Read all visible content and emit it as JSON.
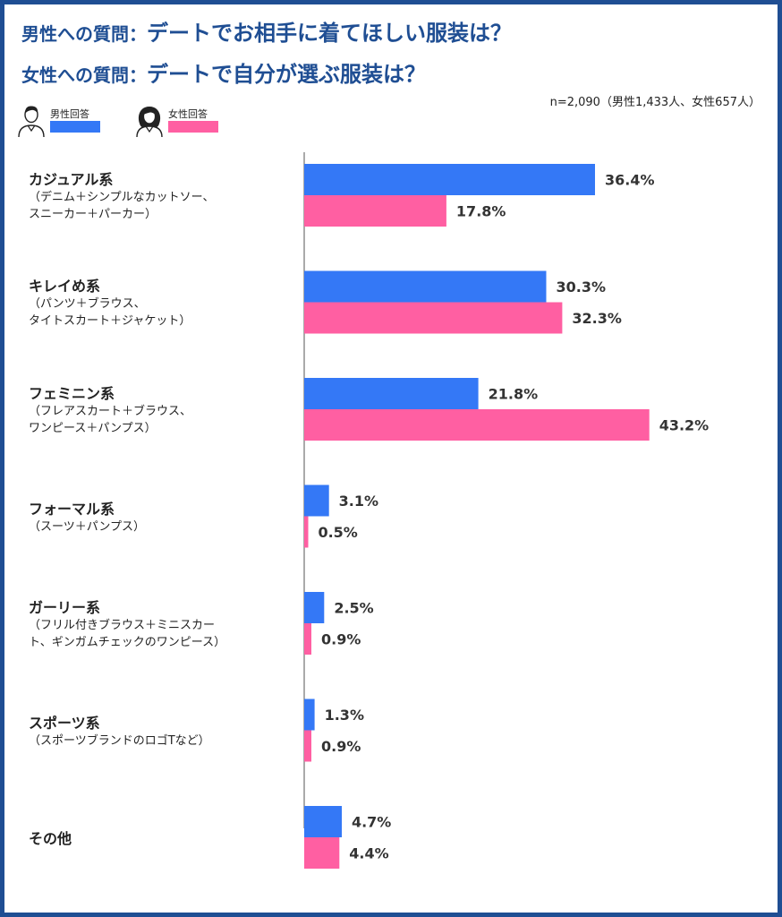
{
  "title": {
    "line1_prefix": "男性への質問：",
    "line1_main": "デートでお相手に着てほしい服装は？",
    "line2_prefix": "女性への質問：",
    "line2_main": "デートで自分が選ぶ服装は？"
  },
  "sample_note": "n=2,090（男性1,433人、女性657人）",
  "legend": {
    "male": {
      "label": "男性回答",
      "icon": "man-avatar-icon",
      "color": "#3478f6"
    },
    "female": {
      "label": "女性回答",
      "icon": "woman-avatar-icon",
      "color": "#ff5fa2"
    }
  },
  "chart_data": {
    "type": "bar",
    "orientation": "horizontal",
    "categories": [
      {
        "name": "カジュアル系",
        "sub": [
          "（デニム＋シンプルなカットソー、",
          "スニーカー＋パーカー）"
        ]
      },
      {
        "name": "キレイめ系",
        "sub": [
          "（パンツ＋ブラウス、",
          "タイトスカート＋ジャケット）"
        ]
      },
      {
        "name": "フェミニン系",
        "sub": [
          "（フレアスカート＋ブラウス、",
          "ワンピース＋パンプス）"
        ]
      },
      {
        "name": "フォーマル系",
        "sub": [
          "（スーツ＋パンプス）"
        ]
      },
      {
        "name": "ガーリー系",
        "sub": [
          "（フリル付きブラウス＋ミニスカー",
          "ト、ギンガムチェックのワンピース）"
        ]
      },
      {
        "name": "スポーツ系",
        "sub": [
          "（スポーツブランドのロゴTなど）"
        ]
      },
      {
        "name": "その他",
        "sub": []
      }
    ],
    "series": [
      {
        "name": "男性回答",
        "color": "#3478f6",
        "values": [
          36.4,
          30.3,
          21.8,
          3.1,
          2.5,
          1.3,
          4.7
        ]
      },
      {
        "name": "女性回答",
        "color": "#ff5fa2",
        "values": [
          17.8,
          32.3,
          43.2,
          0.5,
          0.9,
          0.9,
          4.4
        ]
      }
    ],
    "value_suffix": "%",
    "xlim": [
      0,
      50
    ],
    "grid": false,
    "legend_position": "top-left"
  }
}
